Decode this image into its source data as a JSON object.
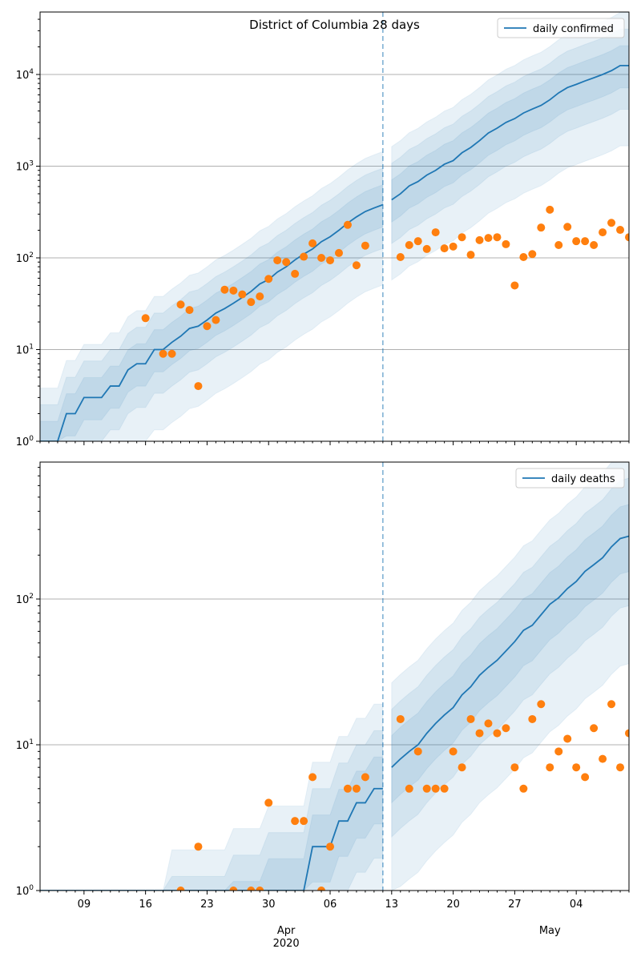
{
  "chart_data": [
    {
      "type": "line",
      "title": "District of Columbia 28 days",
      "legend": {
        "label": "daily confirmed",
        "placement": "top-right"
      },
      "yscale": "log",
      "ylim": [
        1,
        48000
      ],
      "y_ticks": [
        {
          "value": 1,
          "base": "10",
          "exp": "0"
        },
        {
          "value": 10,
          "base": "10",
          "exp": "1"
        },
        {
          "value": 100,
          "base": "10",
          "exp": "2"
        },
        {
          "value": 1000,
          "base": "10",
          "exp": "3"
        },
        {
          "value": 10000,
          "base": "10",
          "exp": "4"
        }
      ],
      "start_date": "2020-03-04",
      "split_index": 39,
      "median_before_split": [
        1,
        1,
        1,
        2,
        2,
        3,
        3,
        3,
        4,
        4,
        6,
        7,
        7,
        10,
        10,
        12,
        14,
        17,
        18,
        21,
        25,
        28,
        32,
        37,
        43,
        52,
        58,
        70,
        80,
        95,
        110,
        125,
        150,
        170,
        200,
        240,
        280,
        320,
        350,
        380
      ],
      "median_after_split": [
        430,
        500,
        610,
        680,
        800,
        900,
        1050,
        1150,
        1400,
        1600,
        1900,
        2300,
        2600,
        3000,
        3300,
        3800,
        4200,
        4600,
        5300,
        6300,
        7200,
        7800,
        8500,
        9200,
        10000,
        11000,
        12500,
        12500
      ],
      "observed": [
        null,
        null,
        null,
        null,
        null,
        null,
        null,
        null,
        null,
        null,
        null,
        null,
        22,
        null,
        9,
        9,
        31,
        27,
        4,
        18,
        21,
        45,
        44,
        40,
        33,
        38,
        59,
        94,
        90,
        67,
        103,
        144,
        100,
        94,
        113,
        229,
        83,
        136,
        null,
        null,
        null,
        102,
        138,
        152,
        125,
        190,
        127,
        133,
        168,
        108,
        156,
        165,
        168,
        141,
        50,
        102,
        110,
        214,
        335,
        138,
        218,
        152,
        152,
        138,
        190,
        241,
        202,
        168
      ]
    },
    {
      "type": "line",
      "title": "",
      "legend": {
        "label": "daily deaths",
        "placement": "top-right"
      },
      "yscale": "log",
      "ylim": [
        1,
        870
      ],
      "y_ticks": [
        {
          "value": 1,
          "base": "10",
          "exp": "0"
        },
        {
          "value": 10,
          "base": "10",
          "exp": "1"
        },
        {
          "value": 100,
          "base": "10",
          "exp": "2"
        }
      ],
      "start_date": "2020-03-04",
      "split_index": 39,
      "median_before_split": [
        0.25,
        0.25,
        0.25,
        0.25,
        0.25,
        0.25,
        0.25,
        0.25,
        0.25,
        0.25,
        0.25,
        0.25,
        0.25,
        0.25,
        0.25,
        0.5,
        0.5,
        0.5,
        0.5,
        0.5,
        0.5,
        0.5,
        0.7,
        0.7,
        0.7,
        0.7,
        1,
        1,
        1,
        1,
        1,
        2,
        2,
        2,
        3,
        3,
        4,
        4,
        5,
        5
      ],
      "median_after_split": [
        7,
        8,
        9,
        10,
        12,
        14,
        16,
        18,
        22,
        25,
        30,
        34,
        38,
        44,
        51,
        61,
        66,
        78,
        92,
        102,
        118,
        132,
        155,
        172,
        192,
        228,
        260,
        270
      ],
      "observed": [
        null,
        null,
        null,
        null,
        null,
        null,
        null,
        null,
        null,
        null,
        null,
        null,
        null,
        null,
        null,
        null,
        1,
        null,
        2,
        null,
        null,
        null,
        1,
        null,
        1,
        1,
        4,
        null,
        null,
        3,
        3,
        6,
        1,
        2,
        null,
        5,
        5,
        6,
        null,
        null,
        null,
        15,
        5,
        9,
        5,
        5,
        5,
        9,
        7,
        15,
        12,
        14,
        12,
        13,
        7,
        5,
        15,
        19,
        7,
        9,
        11,
        7,
        6,
        13,
        8,
        19,
        7,
        12
      ]
    }
  ],
  "bands": [
    {
      "upper_factor": 3.8,
      "lower_factor": 7.5
    },
    {
      "upper_factor": 2.5,
      "lower_factor": 3.0
    },
    {
      "upper_factor": 1.65,
      "lower_factor": 1.75
    }
  ],
  "num_days": 68,
  "x_ticks": [
    {
      "day": 5,
      "label": "09"
    },
    {
      "day": 12,
      "label": "16"
    },
    {
      "day": 19,
      "label": "23"
    },
    {
      "day": 26,
      "label": "30"
    },
    {
      "day": 33,
      "label": "06"
    },
    {
      "day": 40,
      "label": "13"
    },
    {
      "day": 47,
      "label": "20"
    },
    {
      "day": 54,
      "label": "27"
    },
    {
      "day": 61,
      "label": "04"
    }
  ],
  "x_month_labels": [
    {
      "day": 28,
      "label": "Apr",
      "sub": "2020"
    },
    {
      "day": 58,
      "label": "May",
      "sub": ""
    }
  ],
  "colors": {
    "line": "#1f77b4",
    "observed": "#ff7f0e",
    "grid": "#b0b0b0"
  }
}
